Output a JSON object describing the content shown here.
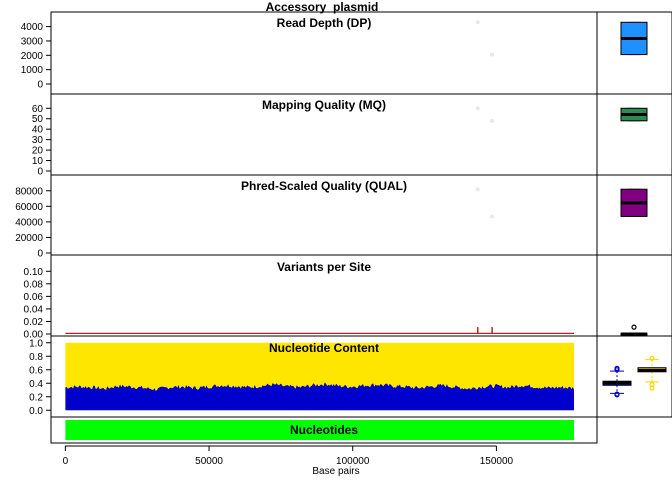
{
  "figure": {
    "title": "Accessory_plasmid",
    "xlabel": "Base pairs",
    "x_ticks": [
      0,
      50000,
      100000,
      150000
    ],
    "x_tick_labels": [
      "0",
      "50000",
      "100000",
      "150000"
    ],
    "xlim": [
      -5000,
      185000
    ],
    "sequence_length": 177000
  },
  "chart_data": [
    {
      "type": "scatter",
      "title": "Read Depth (DP)",
      "ylim": [
        0,
        4600
      ],
      "y_ticks": [
        0,
        1000,
        2000,
        3000,
        4000
      ],
      "y_tick_labels": [
        "0",
        "1000",
        "2000",
        "3000",
        "4000"
      ],
      "points": [
        {
          "x": 143500,
          "y": 4300
        },
        {
          "x": 148500,
          "y": 2050
        }
      ],
      "point_color": "#e8e8e8",
      "boxplot": {
        "min": 2050,
        "q1": 2050,
        "median": 3175,
        "q3": 4300,
        "max": 4300,
        "color": "#1e90ff"
      }
    },
    {
      "type": "scatter",
      "title": "Mapping Quality (MQ)",
      "ylim": [
        0,
        66
      ],
      "y_ticks": [
        0,
        10,
        20,
        30,
        40,
        50,
        60
      ],
      "y_tick_labels": [
        "0",
        "10",
        "20",
        "30",
        "40",
        "50",
        "60"
      ],
      "points": [
        {
          "x": 143500,
          "y": 60
        },
        {
          "x": 148500,
          "y": 48
        }
      ],
      "point_color": "#e8e8e8",
      "boxplot": {
        "min": 48,
        "q1": 48,
        "median": 54,
        "q3": 60,
        "max": 60,
        "color": "#2e8b57"
      }
    },
    {
      "type": "scatter",
      "title": "Phred-Scaled Quality (QUAL)",
      "ylim": [
        0,
        90000
      ],
      "y_ticks": [
        0,
        20000,
        40000,
        60000,
        80000
      ],
      "y_tick_labels": [
        "0",
        "20000",
        "40000",
        "60000",
        "80000"
      ],
      "points": [
        {
          "x": 143500,
          "y": 82000
        },
        {
          "x": 148500,
          "y": 47000
        }
      ],
      "point_color": "#e8e8e8",
      "boxplot": {
        "min": 47000,
        "q1": 47000,
        "median": 64500,
        "q3": 82000,
        "max": 82000,
        "color": "#800080"
      }
    },
    {
      "type": "line",
      "title": "Variants per Site",
      "ylim": [
        0,
        0.11
      ],
      "y_ticks": [
        0,
        0.02,
        0.04,
        0.06,
        0.08,
        0.1
      ],
      "y_tick_labels": [
        "0.00",
        "0.02",
        "0.04",
        "0.06",
        "0.08",
        "0.10"
      ],
      "baseline": 0.001,
      "spikes": [
        {
          "x": 143500,
          "y": 0.011
        },
        {
          "x": 148500,
          "y": 0.011
        }
      ],
      "line_color": "#b22222",
      "boxplot": {
        "min": 0,
        "q1": 0,
        "median": 0,
        "q3": 0.001,
        "max": 0.001,
        "outlier": 0.011,
        "color": "#000000"
      }
    },
    {
      "type": "area",
      "title": "Nucleotide Content",
      "ylim": [
        -0.1,
        1.1
      ],
      "y_ticks": [
        0,
        0.2,
        0.4,
        0.6,
        0.8,
        1
      ],
      "y_tick_labels": [
        "0.0",
        "0.2",
        "0.4",
        "0.6",
        "0.8",
        "1.0"
      ],
      "series": [
        {
          "fill": "#0000cd",
          "profile": [
            0.34,
            0.35,
            0.34,
            0.32,
            0.36,
            0.35,
            0.33,
            0.31,
            0.34,
            0.35,
            0.33,
            0.35,
            0.37,
            0.36,
            0.34,
            0.36,
            0.38,
            0.35,
            0.34,
            0.37,
            0.39,
            0.36,
            0.35,
            0.37,
            0.38,
            0.36,
            0.35,
            0.33,
            0.35,
            0.37,
            0.34,
            0.32,
            0.35,
            0.36,
            0.34,
            0.37,
            0.35,
            0.33,
            0.34,
            0.33
          ]
        },
        {
          "fill": "#ffe600",
          "total": 1.0
        }
      ],
      "boxplots": [
        {
          "min": 0.25,
          "q1": 0.37,
          "median": 0.41,
          "q3": 0.43,
          "max": 0.58,
          "outliers_low": [
            0.23,
            0.24
          ],
          "outliers_high": [
            0.6,
            0.62
          ],
          "color": "#0000cd"
        },
        {
          "min": 0.42,
          "q1": 0.57,
          "median": 0.59,
          "q3": 0.63,
          "max": 0.75,
          "outliers_low": [
            0.33,
            0.38
          ],
          "outliers_high": [
            0.77
          ],
          "color": "#ffd700"
        }
      ]
    },
    {
      "type": "bar",
      "title": "Nucleotides",
      "fill": "#00ff00"
    }
  ]
}
